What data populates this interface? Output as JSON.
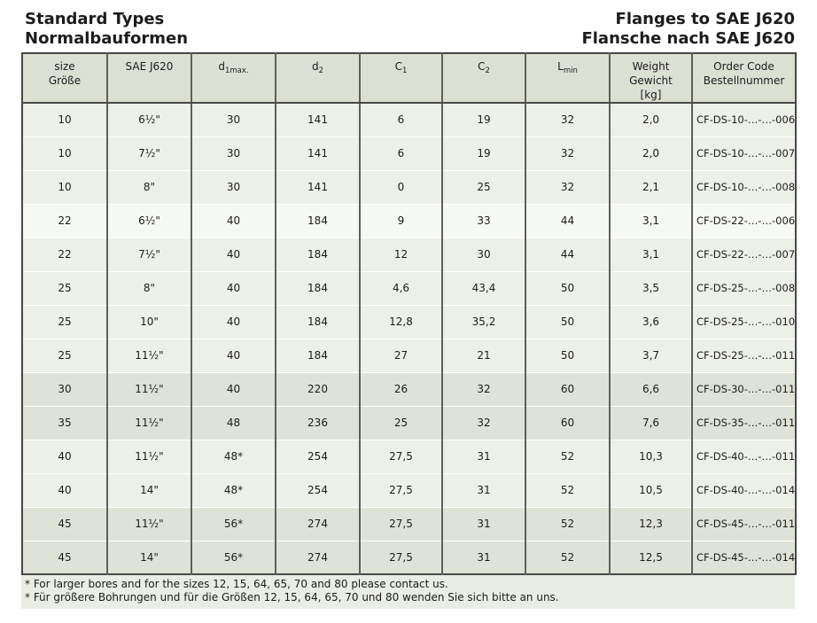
{
  "header": {
    "title_left_line1": "Standard Types",
    "title_left_line2": "Normalbauformen",
    "title_right_line1": "Flanges to SAE J620",
    "title_right_line2": "Flansche nach SAE J620"
  },
  "table": {
    "columns": [
      {
        "id": "size",
        "lines": [
          "size",
          "Größe"
        ]
      },
      {
        "id": "sae-j620",
        "lines": [
          "SAE J620"
        ]
      },
      {
        "id": "d1max",
        "base": "d",
        "sub": "1max."
      },
      {
        "id": "d2",
        "base": "d",
        "sub": "2"
      },
      {
        "id": "c1",
        "base": "C",
        "sub": "1"
      },
      {
        "id": "c2",
        "base": "C",
        "sub": "2"
      },
      {
        "id": "lmin",
        "base": "L",
        "sub": "min"
      },
      {
        "id": "weight",
        "lines": [
          "Weight",
          "Gewicht",
          "[kg]"
        ]
      },
      {
        "id": "order-code",
        "lines": [
          "Order Code",
          "Bestellnummer"
        ]
      }
    ],
    "rows": [
      {
        "tint": "light",
        "cells": [
          "10",
          "6½\"",
          "30",
          "141",
          "6",
          "19",
          "32",
          "2,0",
          "CF-DS-10-…-…-006"
        ]
      },
      {
        "tint": "light",
        "cells": [
          "10",
          "7½\"",
          "30",
          "141",
          "6",
          "19",
          "32",
          "2,0",
          "CF-DS-10-…-…-007"
        ]
      },
      {
        "tint": "light",
        "cells": [
          "10",
          "8\"",
          "30",
          "141",
          "0",
          "25",
          "32",
          "2,1",
          "CF-DS-10-…-…-008"
        ]
      },
      {
        "tint": "white",
        "cells": [
          "22",
          "6½\"",
          "40",
          "184",
          "9",
          "33",
          "44",
          "3,1",
          "CF-DS-22-…-…-006"
        ]
      },
      {
        "tint": "light",
        "cells": [
          "22",
          "7½\"",
          "40",
          "184",
          "12",
          "30",
          "44",
          "3,1",
          "CF-DS-22-…-…-007"
        ]
      },
      {
        "tint": "light",
        "cells": [
          "25",
          "8\"",
          "40",
          "184",
          "4,6",
          "43,4",
          "50",
          "3,5",
          "CF-DS-25-…-…-008"
        ]
      },
      {
        "tint": "light",
        "cells": [
          "25",
          "10\"",
          "40",
          "184",
          "12,8",
          "35,2",
          "50",
          "3,6",
          "CF-DS-25-…-…-010"
        ]
      },
      {
        "tint": "light",
        "cells": [
          "25",
          "11½\"",
          "40",
          "184",
          "27",
          "21",
          "50",
          "3,7",
          "CF-DS-25-…-…-011"
        ]
      },
      {
        "tint": "dark",
        "cells": [
          "30",
          "11½\"",
          "40",
          "220",
          "26",
          "32",
          "60",
          "6,6",
          "CF-DS-30-…-…-011"
        ]
      },
      {
        "tint": "dark",
        "cells": [
          "35",
          "11½\"",
          "48",
          "236",
          "25",
          "32",
          "60",
          "7,6",
          "CF-DS-35-…-…-011"
        ]
      },
      {
        "tint": "light",
        "cells": [
          "40",
          "11½\"",
          "48*",
          "254",
          "27,5",
          "31",
          "52",
          "10,3",
          "CF-DS-40-…-…-011"
        ]
      },
      {
        "tint": "light",
        "cells": [
          "40",
          "14\"",
          "48*",
          "254",
          "27,5",
          "31",
          "52",
          "10,5",
          "CF-DS-40-…-…-014"
        ]
      },
      {
        "tint": "dark",
        "cells": [
          "45",
          "11½\"",
          "56*",
          "274",
          "27,5",
          "31",
          "52",
          "12,3",
          "CF-DS-45-…-…-011"
        ]
      },
      {
        "tint": "dark",
        "cells": [
          "45",
          "14\"",
          "56*",
          "274",
          "27,5",
          "31",
          "52",
          "12,5",
          "CF-DS-45-…-…-014"
        ]
      }
    ]
  },
  "footnotes": {
    "en": "* For larger bores and for the sizes 12, 15, 64, 65, 70 and 80 please contact us.",
    "de": "* Für größere Bohrungen und für die Größen 12, 15, 64, 65, 70 und 80 wenden Sie sich bitte an uns."
  },
  "colors": {
    "header_bg": "#dce0d3",
    "row_light": "#edf0e9",
    "row_white": "#f6f8f3",
    "row_dark": "#dfe3d7",
    "footnote_bg": "#e9ede3",
    "border_dark": "#474747",
    "border_inner": "#5e5e5e",
    "text": "#1c1c1c"
  }
}
